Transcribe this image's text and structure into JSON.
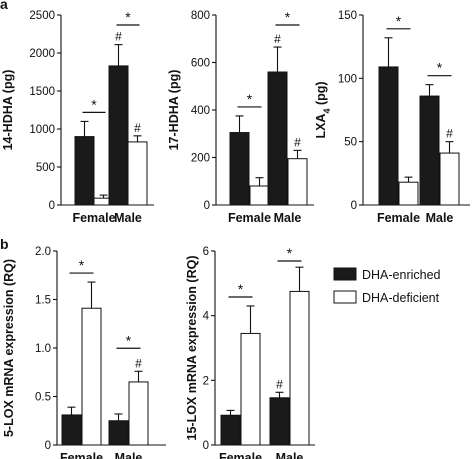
{
  "panels": [
    {
      "letter": "a"
    },
    {
      "letter": "b"
    }
  ],
  "legend": {
    "items": [
      {
        "label": "DHA-enriched",
        "color": "#1a1a1a"
      },
      {
        "label": "DHA-deficient",
        "color": "#ffffff"
      }
    ]
  },
  "chart_data": [
    {
      "type": "bar",
      "panel": "a",
      "ylabel": "14-HDHA (pg)",
      "ylim": [
        0,
        2500
      ],
      "yticks": [
        "0",
        "500",
        "1000",
        "1500",
        "2000",
        "2500"
      ],
      "ytick_values": [
        0,
        500,
        1000,
        1500,
        2000,
        2500
      ],
      "categories": [
        "Female",
        "Male"
      ],
      "series": [
        {
          "values": [
            900,
            1830
          ],
          "errors": [
            200,
            280
          ],
          "color": "#1a1a1a"
        },
        {
          "values": [
            90,
            830
          ],
          "errors": [
            40,
            80
          ],
          "color": "#ffffff"
        }
      ],
      "brackets": [
        {
          "category": 0,
          "label": "*"
        },
        {
          "category": 1,
          "label": "*"
        }
      ],
      "marks": [
        {
          "category": 1,
          "series": 0,
          "label": "#"
        },
        {
          "category": 1,
          "series": 1,
          "label": "#"
        }
      ]
    },
    {
      "type": "bar",
      "panel": "a",
      "ylabel": "17-HDHA (pg)",
      "ylim": [
        0,
        800
      ],
      "yticks": [
        "0",
        "200",
        "400",
        "600",
        "800"
      ],
      "ytick_values": [
        0,
        200,
        400,
        600,
        800
      ],
      "categories": [
        "Female",
        "Male"
      ],
      "series": [
        {
          "values": [
            305,
            560
          ],
          "errors": [
            70,
            105
          ],
          "color": "#1a1a1a"
        },
        {
          "values": [
            80,
            195
          ],
          "errors": [
            35,
            35
          ],
          "color": "#ffffff"
        }
      ],
      "brackets": [
        {
          "category": 0,
          "label": "*"
        },
        {
          "category": 1,
          "label": "*"
        }
      ],
      "marks": [
        {
          "category": 1,
          "series": 0,
          "label": "#"
        },
        {
          "category": 1,
          "series": 1,
          "label": "#"
        }
      ]
    },
    {
      "type": "bar",
      "panel": "a",
      "ylabel": "LXA4 (pg)",
      "ylabel_main": "LXA",
      "ylabel_sub": "4",
      "ylabel_suffix": " (pg)",
      "ylim": [
        0,
        150
      ],
      "yticks": [
        "0",
        "50",
        "100",
        "150"
      ],
      "ytick_values": [
        0,
        50,
        100,
        150
      ],
      "categories": [
        "Female",
        "Male"
      ],
      "series": [
        {
          "values": [
            109,
            86
          ],
          "errors": [
            23,
            9
          ],
          "color": "#1a1a1a"
        },
        {
          "values": [
            18,
            41
          ],
          "errors": [
            4,
            9
          ],
          "color": "#ffffff"
        }
      ],
      "brackets": [
        {
          "category": 0,
          "label": "*"
        },
        {
          "category": 1,
          "label": "*"
        }
      ],
      "marks": [
        {
          "category": 1,
          "series": 1,
          "label": "#"
        }
      ]
    },
    {
      "type": "bar",
      "panel": "b",
      "ylabel": "5-LOX mRNA expression (RQ)",
      "ylim": [
        0,
        2.0
      ],
      "yticks": [
        "0",
        "0.5",
        "1.0",
        "1.5",
        "2.0"
      ],
      "ytick_values": [
        0,
        0.5,
        1.0,
        1.5,
        2.0
      ],
      "categories": [
        "Female",
        "Male"
      ],
      "series": [
        {
          "values": [
            0.31,
            0.25
          ],
          "errors": [
            0.08,
            0.07
          ],
          "color": "#1a1a1a"
        },
        {
          "values": [
            1.41,
            0.65
          ],
          "errors": [
            0.27,
            0.11
          ],
          "color": "#ffffff"
        }
      ],
      "brackets": [
        {
          "category": 0,
          "label": "*"
        },
        {
          "category": 1,
          "label": "*"
        }
      ],
      "marks": [
        {
          "category": 1,
          "series": 1,
          "label": "#"
        }
      ]
    },
    {
      "type": "bar",
      "panel": "b",
      "ylabel": "15-LOX mRNA expression (RQ)",
      "ylim": [
        0,
        6
      ],
      "yticks": [
        "0",
        "2",
        "4",
        "6"
      ],
      "ytick_values": [
        0,
        2,
        4,
        6
      ],
      "categories": [
        "Female",
        "Male"
      ],
      "series": [
        {
          "values": [
            0.92,
            1.46
          ],
          "errors": [
            0.15,
            0.17
          ],
          "color": "#1a1a1a"
        },
        {
          "values": [
            3.45,
            4.75
          ],
          "errors": [
            0.85,
            0.75
          ],
          "color": "#ffffff"
        }
      ],
      "brackets": [
        {
          "category": 0,
          "label": "*"
        },
        {
          "category": 1,
          "label": "*"
        }
      ],
      "marks": [
        {
          "category": 1,
          "series": 0,
          "label": "#"
        }
      ]
    }
  ]
}
